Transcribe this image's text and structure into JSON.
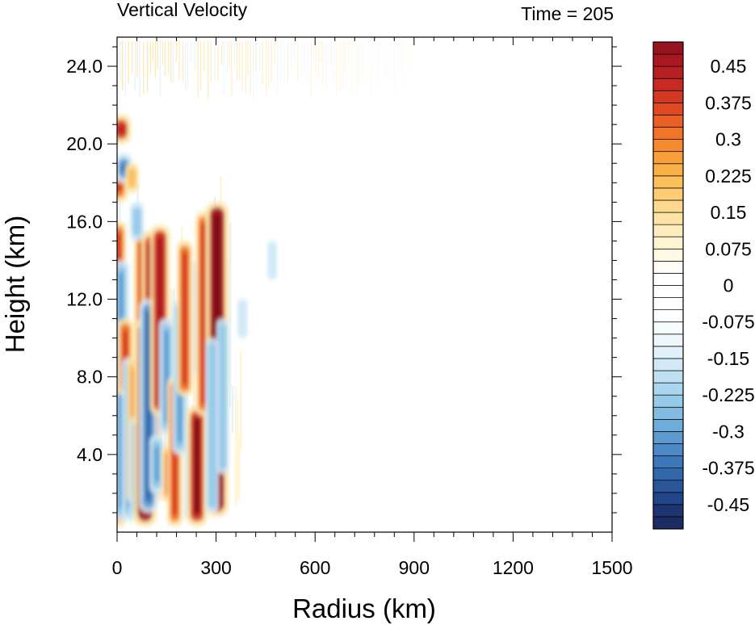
{
  "chart_data": {
    "type": "heatmap",
    "title": "Vertical Velocity",
    "subtitle": "Time = 205",
    "xlabel": "Radius (km)",
    "ylabel": "Height (km)",
    "xlim": [
      0,
      1500
    ],
    "ylim": [
      0,
      25.5
    ],
    "x_ticks": [
      0,
      300,
      600,
      900,
      1200,
      1500
    ],
    "x_tick_labels": [
      "0",
      "300",
      "600",
      "900",
      "1200",
      "1500"
    ],
    "y_ticks": [
      4,
      8,
      12,
      16,
      20,
      24
    ],
    "y_tick_labels": [
      "4.0",
      "8.0",
      "12.0",
      "16.0",
      "20.0",
      "24.0"
    ],
    "grid": false,
    "legend": "right",
    "colorbar": {
      "levels": [
        -0.5,
        -0.475,
        -0.45,
        -0.425,
        -0.4,
        -0.375,
        -0.35,
        -0.325,
        -0.3,
        -0.275,
        -0.25,
        -0.225,
        -0.2,
        -0.175,
        -0.15,
        -0.125,
        -0.1,
        -0.075,
        -0.05,
        -0.025,
        0,
        0.025,
        0.05,
        0.075,
        0.1,
        0.125,
        0.15,
        0.175,
        0.2,
        0.225,
        0.25,
        0.275,
        0.3,
        0.325,
        0.35,
        0.375,
        0.4,
        0.425,
        0.45,
        0.475,
        0.5
      ],
      "labeled_values": [
        0.45,
        0.375,
        0.3,
        0.225,
        0.15,
        0.075,
        0,
        -0.075,
        -0.15,
        -0.225,
        -0.3,
        -0.375,
        -0.45
      ],
      "labels": [
        "0.45",
        "0.375",
        "0.3",
        "0.225",
        "0.15",
        "0.075",
        "0",
        "-0.075",
        "-0.15",
        "-0.225",
        "-0.3",
        "-0.375",
        "-0.45"
      ],
      "colors": [
        "#1b2c62",
        "#1d3673",
        "#214587",
        "#2a5598",
        "#3367ab",
        "#3b78ba",
        "#4b8ac6",
        "#5c9bd1",
        "#6eacdb",
        "#82bce3",
        "#96cae9",
        "#aad6ef",
        "#bfe0f3",
        "#d1e9f6",
        "#e2f1f9",
        "#eef7fb",
        "#f6fbfd",
        "#fcfeff",
        "#ffffff",
        "#ffffff",
        "#ffffff",
        "#fffdf5",
        "#fff9e6",
        "#fff3d2",
        "#feecbd",
        "#fde3a5",
        "#fcd98d",
        "#fccd74",
        "#fbbf5b",
        "#fab049",
        "#f89e3a",
        "#f58a2f",
        "#f07528",
        "#e95f24",
        "#e04a22",
        "#d43822",
        "#c62a23",
        "#b71f22",
        "#a81820",
        "#97141e",
        "#7c0f17"
      ]
    },
    "features": [
      {
        "kind": "warm",
        "r": 5,
        "z0": 0.3,
        "z1": 16,
        "w": 0.5
      },
      {
        "kind": "cool",
        "r": 12,
        "z0": 0.6,
        "z1": 14,
        "w": 0.55
      },
      {
        "kind": "warm",
        "r": 25,
        "z0": 7,
        "z1": 11,
        "w": 0.55
      },
      {
        "kind": "cool",
        "r": 38,
        "z0": 0.6,
        "z1": 9,
        "w": 0.5
      },
      {
        "kind": "warm",
        "r": 52,
        "z0": 1.5,
        "z1": 9,
        "w": 0.45
      },
      {
        "kind": "cool",
        "r": 65,
        "z0": 0.6,
        "z1": 6,
        "w": 0.7
      },
      {
        "kind": "warm",
        "r": 75,
        "z0": 10,
        "z1": 15.5,
        "w": 0.55
      },
      {
        "kind": "warm",
        "r": 85,
        "z0": 0.3,
        "z1": 11,
        "w": 1.0
      },
      {
        "kind": "warm",
        "r": 105,
        "z0": 1.5,
        "z1": 15.5,
        "w": 0.85
      },
      {
        "kind": "cool",
        "r": 95,
        "z0": 1,
        "z1": 12,
        "w": 0.7
      },
      {
        "kind": "warm",
        "r": 130,
        "z0": 6,
        "z1": 15.8,
        "w": 0.8
      },
      {
        "kind": "cool",
        "r": 150,
        "z0": 5,
        "z1": 11,
        "w": 0.5
      },
      {
        "kind": "cool",
        "r": 120,
        "z0": 2,
        "z1": 5,
        "w": 0.45
      },
      {
        "kind": "warm",
        "r": 160,
        "z0": 1.5,
        "z1": 4.5,
        "w": 0.55
      },
      {
        "kind": "warm",
        "r": 175,
        "z0": 0.3,
        "z1": 8,
        "w": 0.5
      },
      {
        "kind": "cool",
        "r": 190,
        "z0": 4,
        "z1": 12,
        "w": 0.5
      },
      {
        "kind": "warm",
        "r": 205,
        "z0": 7,
        "z1": 15,
        "w": 0.55
      },
      {
        "kind": "cool",
        "r": 225,
        "z0": 0.6,
        "z1": 6,
        "w": 0.45
      },
      {
        "kind": "warm",
        "r": 242,
        "z0": 0.3,
        "z1": 6.5,
        "w": 0.85
      },
      {
        "kind": "cool",
        "r": 252,
        "z0": 8,
        "z1": 14,
        "w": 0.4
      },
      {
        "kind": "warm",
        "r": 262,
        "z0": 6,
        "z1": 16.5,
        "w": 0.55
      },
      {
        "kind": "warm",
        "r": 303,
        "z0": 0.8,
        "z1": 17,
        "w": 1.0
      },
      {
        "kind": "cool",
        "r": 288,
        "z0": 1,
        "z1": 10,
        "w": 0.35
      },
      {
        "kind": "cool",
        "r": 320,
        "z0": 3,
        "z1": 11,
        "w": 0.3
      },
      {
        "kind": "warm",
        "r": 12,
        "z0": 20,
        "z1": 21.5,
        "w": 0.8
      },
      {
        "kind": "warm",
        "r": 5,
        "z0": 17,
        "z1": 18.5,
        "w": 0.7
      },
      {
        "kind": "cool",
        "r": 20,
        "z0": 18,
        "z1": 19.5,
        "w": 0.6
      },
      {
        "kind": "warm",
        "r": 45,
        "z0": 17.5,
        "z1": 19,
        "w": 0.35
      },
      {
        "kind": "cool",
        "r": 60,
        "z0": 15,
        "z1": 17,
        "w": 0.4
      },
      {
        "kind": "cool",
        "r": 380,
        "z0": 10,
        "z1": 12,
        "w": 0.15
      },
      {
        "kind": "cool",
        "r": 470,
        "z0": 13,
        "z1": 15,
        "w": 0.12
      }
    ]
  }
}
